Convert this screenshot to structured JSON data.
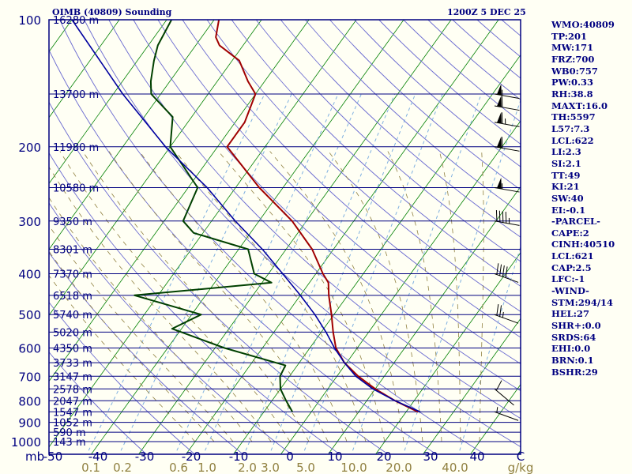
{
  "header": {
    "title": "OIMB (40809) Sounding",
    "time": "1200Z  5 DEC 25"
  },
  "colors": {
    "background": "#FFFFF4",
    "isobar": "#000080",
    "isotherm": "#008000",
    "dry_adiabat": "#6A6AD0",
    "mixing_ratio": "#7FB0E0",
    "moist_adiabat": "#908040",
    "temperature": "#A00000",
    "dewpoint": "#004000",
    "parcel": "#0000A0"
  },
  "stats": [
    "WMO:40809",
    "TP:201",
    "MW:171",
    "FRZ:700",
    "WB0:757",
    "PW:0.33",
    "RH:38.8",
    "MAXT:16.0",
    "TH:5597",
    "L57:7.3",
    "LCL:622",
    "LI:2.3",
    "SI:2.1",
    "TT:49",
    "KI:21",
    "SW:40",
    "EI:-0.1",
    "-PARCEL-",
    "CAPE:2",
    "CINH:40510",
    "LCL:621",
    "CAP:2.5",
    "LFC:-1",
    "-WIND-",
    "STM:294/14",
    "HEL:27",
    "SHR+:0.0",
    "SRDS:64",
    "EHI:0.0",
    "BRN:0.1",
    "BSHR:29"
  ],
  "chart_data": {
    "type": "line",
    "title": "OIMB (40809) Sounding",
    "xlabel": "",
    "ylabel": "mb",
    "x_ticks": [
      "-50",
      "-40",
      "-30",
      "-20",
      "-10",
      "0",
      "10",
      "20",
      "30",
      "40",
      "C"
    ],
    "mixing_ratio_ticks": [
      "0.1",
      "0.2",
      "0.6",
      "1.0",
      "2.0",
      "3.0",
      "5.0",
      "10.0",
      "20.0",
      "40.0",
      "g/kg"
    ],
    "pressure_levels": [
      {
        "p": 100,
        "label": "100",
        "height": "16280 m"
      },
      {
        "p": 150,
        "label": "",
        "height": "13700 m"
      },
      {
        "p": 200,
        "label": "200",
        "height": "11980 m"
      },
      {
        "p": 250,
        "label": "",
        "height": "10580 m"
      },
      {
        "p": 300,
        "label": "300",
        "height": "9350 m"
      },
      {
        "p": 350,
        "label": "",
        "height": "8301 m"
      },
      {
        "p": 400,
        "label": "400",
        "height": "7370 m"
      },
      {
        "p": 450,
        "label": "",
        "height": "6518 m"
      },
      {
        "p": 500,
        "label": "500",
        "height": "5740 m"
      },
      {
        "p": 550,
        "label": "",
        "height": "5020 m"
      },
      {
        "p": 600,
        "label": "600",
        "height": "4350 m"
      },
      {
        "p": 650,
        "label": "",
        "height": "3733 m"
      },
      {
        "p": 700,
        "label": "700",
        "height": "3147 m"
      },
      {
        "p": 750,
        "label": "",
        "height": "2578 m"
      },
      {
        "p": 800,
        "label": "800",
        "height": "2047 m"
      },
      {
        "p": 850,
        "label": "",
        "height": "1547 m"
      },
      {
        "p": 900,
        "label": "900",
        "height": "1052 m"
      },
      {
        "p": 950,
        "label": "",
        "height": "590 m"
      },
      {
        "p": 1000,
        "label": "1000",
        "height": "143 m"
      }
    ],
    "series": [
      {
        "key": "temperature",
        "values": [
          [
            850,
            22.5
          ],
          [
            800,
            16.0
          ],
          [
            750,
            10.0
          ],
          [
            700,
            4.5
          ],
          [
            650,
            -0.5
          ],
          [
            600,
            -4.5
          ],
          [
            550,
            -7.5
          ],
          [
            500,
            -10.5
          ],
          [
            450,
            -14.0
          ],
          [
            420,
            -16.0
          ],
          [
            400,
            -18.5
          ],
          [
            350,
            -24.5
          ],
          [
            300,
            -33.0
          ],
          [
            250,
            -45.0
          ],
          [
            200,
            -58.0
          ],
          [
            175,
            -58.0
          ],
          [
            150,
            -60.0
          ],
          [
            140,
            -63.5
          ],
          [
            125,
            -68.5
          ],
          [
            115,
            -75.0
          ],
          [
            110,
            -77.0
          ],
          [
            100,
            -79.0
          ]
        ]
      },
      {
        "key": "dewpoint",
        "values": [
          [
            850,
            -4.0
          ],
          [
            800,
            -7.0
          ],
          [
            750,
            -10.0
          ],
          [
            700,
            -12.0
          ],
          [
            660,
            -12.5
          ],
          [
            600,
            -28.0
          ],
          [
            540,
            -42.0
          ],
          [
            500,
            -38.0
          ],
          [
            450,
            -55.0
          ],
          [
            420,
            -28.0
          ],
          [
            400,
            -33.0
          ],
          [
            350,
            -38.0
          ],
          [
            320,
            -52.0
          ],
          [
            300,
            -56.0
          ],
          [
            250,
            -58.0
          ],
          [
            200,
            -70.0
          ],
          [
            170,
            -74.0
          ],
          [
            150,
            -82.0
          ],
          [
            140,
            -84.0
          ],
          [
            125,
            -86.5
          ],
          [
            115,
            -88.0
          ],
          [
            100,
            -89.0
          ]
        ]
      },
      {
        "key": "parcel",
        "values": [
          [
            850,
            23.0
          ],
          [
            800,
            16.0
          ],
          [
            750,
            9.5
          ],
          [
            700,
            4.0
          ],
          [
            650,
            -0.5
          ],
          [
            600,
            -4.8
          ],
          [
            550,
            -9.0
          ],
          [
            500,
            -14.0
          ],
          [
            450,
            -20.0
          ],
          [
            400,
            -27.0
          ],
          [
            350,
            -35.0
          ],
          [
            300,
            -45.0
          ],
          [
            250,
            -56.0
          ],
          [
            200,
            -71.0
          ],
          [
            150,
            -88.0
          ],
          [
            100,
            -110.0
          ]
        ]
      }
    ],
    "wind_barbs": [
      {
        "p": 150,
        "dir": 280,
        "speed_kt": 55
      },
      {
        "p": 160,
        "dir": 280,
        "speed_kt": 60
      },
      {
        "p": 175,
        "dir": 280,
        "speed_kt": 65
      },
      {
        "p": 200,
        "dir": 280,
        "speed_kt": 60
      },
      {
        "p": 250,
        "dir": 280,
        "speed_kt": 55
      },
      {
        "p": 300,
        "dir": 280,
        "speed_kt": 45
      },
      {
        "p": 400,
        "dir": 290,
        "speed_kt": 40
      },
      {
        "p": 500,
        "dir": 290,
        "speed_kt": 25
      },
      {
        "p": 750,
        "dir": 310,
        "speed_kt": 10
      },
      {
        "p": 850,
        "dir": 290,
        "speed_kt": 5
      }
    ]
  }
}
